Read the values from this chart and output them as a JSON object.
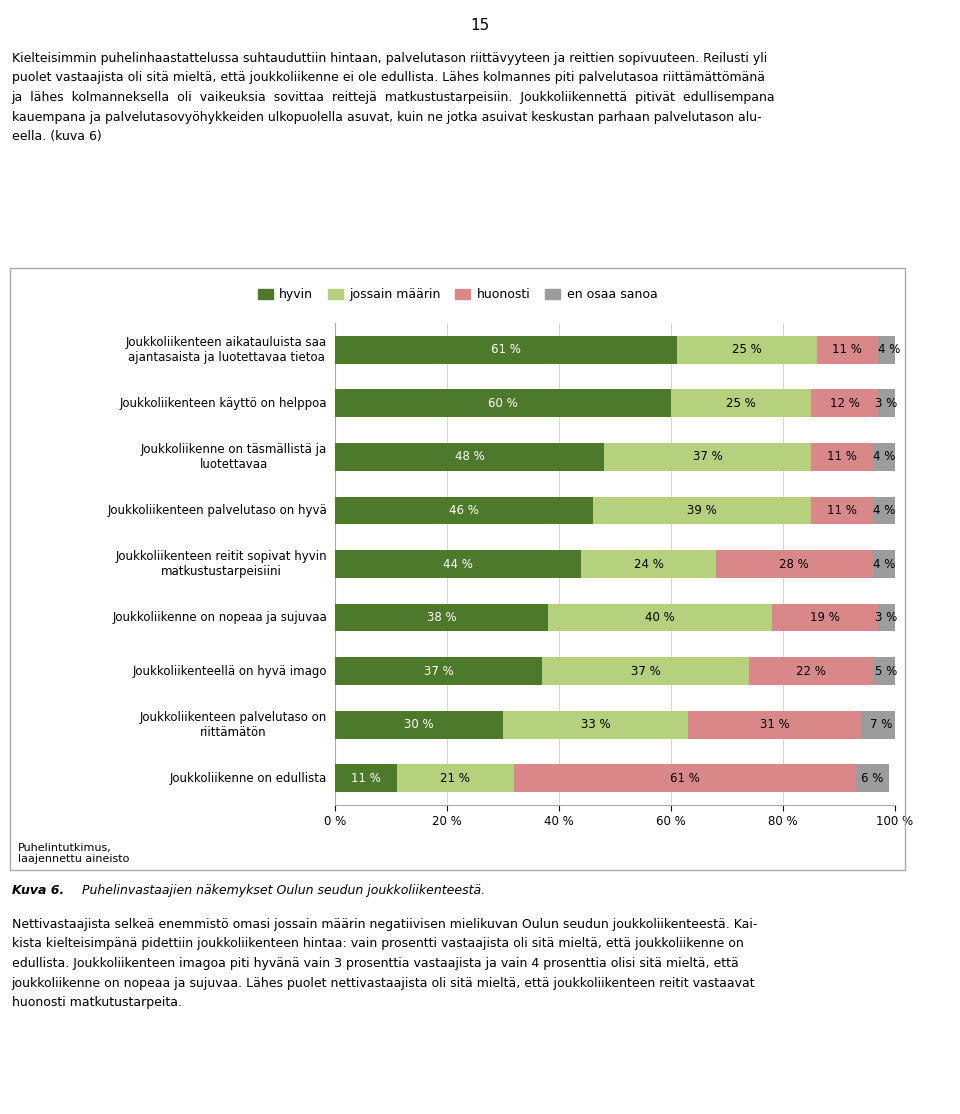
{
  "categories": [
    "Joukkoliikenteen aikatauluista saa\najantasaista ja luotettavaa tietoa",
    "Joukkoliikenteen käyttö on helppoa",
    "Joukkoliikenne on täsmällistä ja\nluotettavaa",
    "Joukkoliikenteen palvelutaso on hyvä",
    "Joukkoliikenteen reitit sopivat hyvin\nmatkustustarpeisiini",
    "Joukkoliikenne on nopeaa ja sujuvaa",
    "Joukkoliikenteellä on hyvä imago",
    "Joukkoliikenteen palvelutaso on\nriittämätön",
    "Joukkoliikenne on edullista"
  ],
  "hyvin": [
    61,
    60,
    48,
    46,
    44,
    38,
    37,
    30,
    11
  ],
  "jossain": [
    25,
    25,
    37,
    39,
    24,
    40,
    37,
    33,
    21
  ],
  "huonosti": [
    11,
    12,
    11,
    11,
    28,
    19,
    22,
    31,
    61
  ],
  "en_osaa": [
    4,
    3,
    4,
    4,
    4,
    3,
    5,
    7,
    6
  ],
  "colors": {
    "hyvin": "#4d7a2a",
    "jossain": "#b5d17e",
    "huonosti": "#d9888a",
    "en_osaa": "#9c9c9c"
  },
  "legend_labels": [
    "hyvin",
    "jossain määrin",
    "huonosti",
    "en osaa sanoa"
  ],
  "source_text": "Puhelintutkimus,\nlaajennettu aineisto",
  "caption_bold": "Kuva 6.",
  "caption_text": "Puhelinvastaajien näkemykset Oulun seudun joukkoliikenteestä.",
  "page_number": "15",
  "top_text_lines": [
    "Kielteisimmin puhelinhaastattelussa suhtauduttiin hintaan, palvelutason riittävyyteen ja reittien sopivuuteen. Reilusti yli",
    "puolet vastaajista oli sitä mieltä, että joukkoliikenne ei ole edullista. Lähes kolmannes piti palvelutasoa riittämättömänä",
    "ja  lähes  kolmanneksella  oli  vaikeuksia  sovittaa  reittejä  matkustustarpeisiin.  Joukkoliikennettä  pitivät  edullisempana",
    "kauempana ja palvelutasovyöhykkeiden ulkopuolella asuvat, kuin ne jotka asuivat keskustan parhaan palvelutason alu-",
    "eella. (kuva 6)"
  ],
  "bottom_text_lines": [
    "Nettivastaajista selkeä enemmistö omasi jossain määrin negatiivisen mielikuvan Oulun seudun joukkoliikenteestä. Kai-",
    "kista kielteisimpänä pidettiin joukkoliikenteen hintaa: vain prosentti vastaajista oli sitä mieltä, että joukkoliikenne on",
    "edullista. Joukkoliikenteen imagoa piti hyvänä vain 3 prosenttia vastaajista ja vain 4 prosenttia olisi sitä mieltä, että",
    "joukkoliikenne on nopeaa ja sujuvaa. Lähes puolet nettivastaajista oli sitä mieltä, että joukkoliikenteen reitit vastaavat",
    "huonosti matkutustarpeita."
  ],
  "figure_bg": "#ffffff",
  "chart_bg": "#ffffff",
  "border_color": "#aaaaaa",
  "bar_height": 0.52
}
